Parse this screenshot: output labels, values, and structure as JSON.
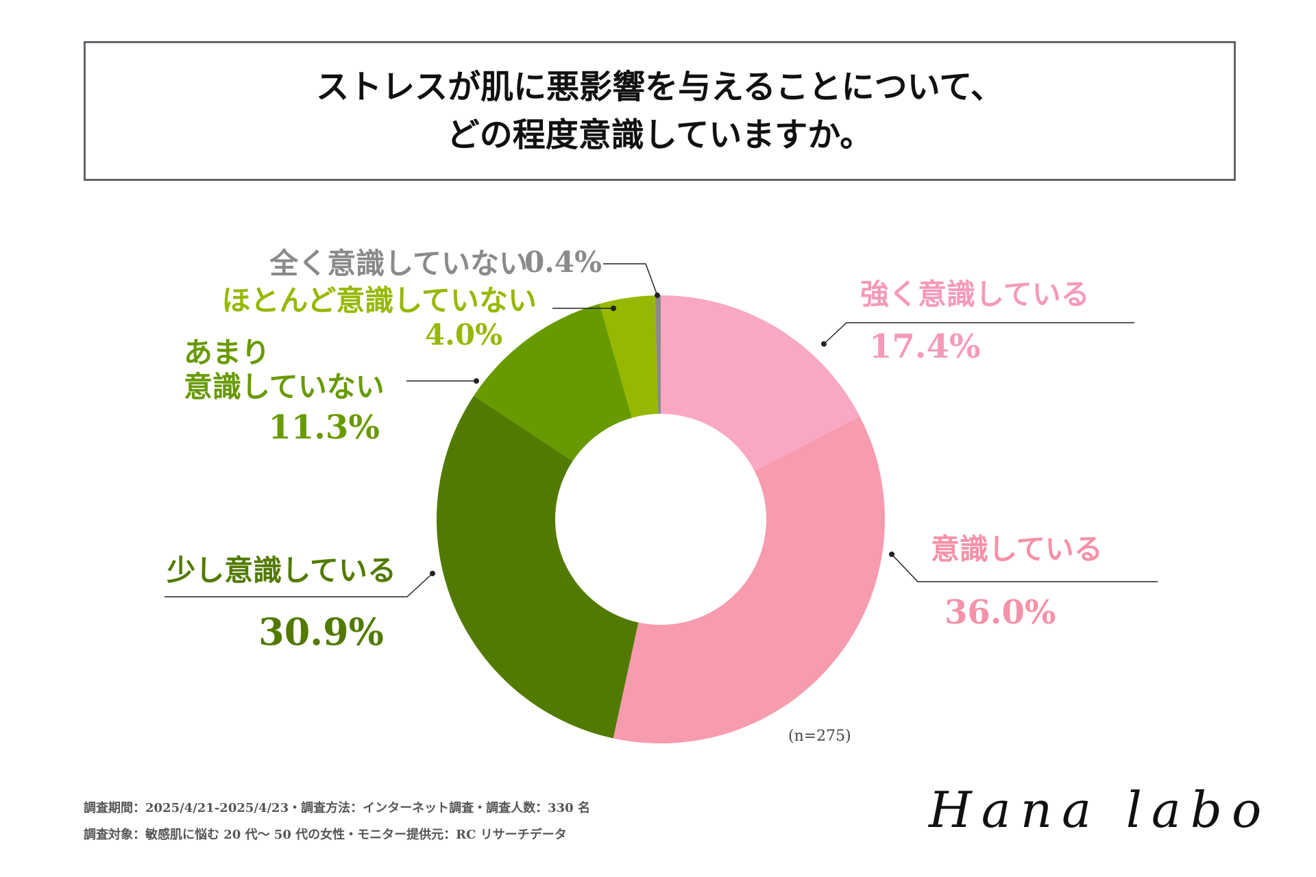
{
  "chart_data": {
    "type": "donut",
    "title": "ストレスが肌に悪影響を与えることについて、\nどの程度意識していますか。",
    "categories": [
      "強く意識している",
      "意識している",
      "少し意識している",
      "あまり\n意識していない",
      "ほとんど意識していない",
      "全く意識していない"
    ],
    "values": [
      17.4,
      36.0,
      30.9,
      11.3,
      4.0,
      0.4
    ],
    "value_labels": [
      "17.4%",
      "36.0%",
      "30.9%",
      "11.3%",
      "4.0%",
      "0.4%"
    ],
    "colors": [
      "#f9a8c4",
      "#f79bae",
      "#527a00",
      "#689a00",
      "#96b800",
      "#8a8a8a"
    ],
    "label_colors": [
      "#f59ab8",
      "#f591a8",
      "#527a00",
      "#689a00",
      "#96b800",
      "#8a8a8a"
    ],
    "note": "(n=275)"
  },
  "footer": {
    "lines": [
      "調査期間：2025/4/21-2025/4/23・調査方法：インターネット調査・調査人数：330 名",
      "調査対象：敏感肌に悩む 20 代〜 50 代の女性・モニター提供元：RC リサーチデータ"
    ],
    "logo": "Hana labo"
  }
}
